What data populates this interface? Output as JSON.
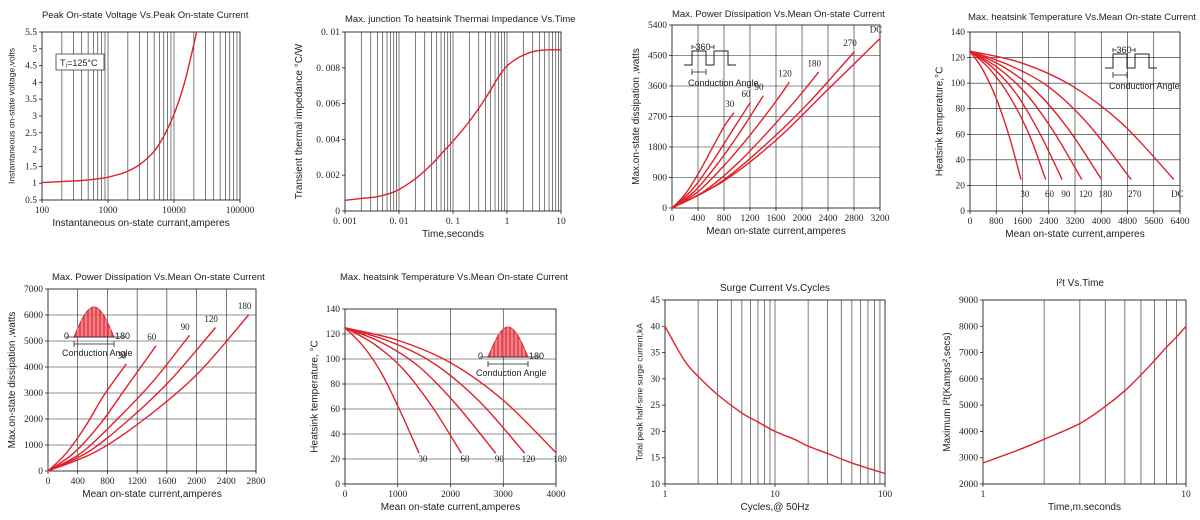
{
  "chart_data": [
    {
      "type": "line",
      "title": "Peak On-state Voltage Vs.Peak On-state Current",
      "xlabel": "Instantaneous on-state currant,amperes",
      "ylabel": "Instantaneous on-state voltage,volts",
      "xscale": "log",
      "xlim": [
        100,
        100000
      ],
      "ylim": [
        0.5,
        5.5
      ],
      "xticks": [
        "100",
        "1000",
        "10000",
        "100000"
      ],
      "yticks": [
        "0.5",
        "1",
        "1.5",
        "2",
        "2.5",
        "3",
        "3.5",
        "4",
        "4.5",
        "5",
        "5.5"
      ],
      "grid": "vertical-log",
      "annotation": "Tⱼ=125°C",
      "series": [
        {
          "x": [
            100,
            200,
            400,
            700,
            1000,
            1500,
            2000,
            3000,
            5000,
            7000,
            10000,
            14000,
            18000,
            22000
          ],
          "y": [
            1.02,
            1.05,
            1.08,
            1.13,
            1.18,
            1.27,
            1.36,
            1.55,
            1.95,
            2.4,
            3.05,
            3.9,
            4.75,
            5.5
          ]
        }
      ]
    },
    {
      "type": "line",
      "title": "Max. junction To heatsink Thermai Impedance Vs.Time",
      "xlabel": "Time,seconds",
      "ylabel": "Transient thermal impedance °C/W",
      "xscale": "log",
      "xlim": [
        0.001,
        10
      ],
      "ylim": [
        0,
        0.01
      ],
      "xticks": [
        "0. 001",
        "0. 01",
        "0. 1",
        "1",
        "10"
      ],
      "yticks": [
        "0",
        "0. 002",
        "0. 004",
        "0. 006",
        "0. 008",
        "0. 01"
      ],
      "grid": "vertical-log",
      "series": [
        {
          "x": [
            0.001,
            0.002,
            0.004,
            0.007,
            0.01,
            0.02,
            0.04,
            0.07,
            0.1,
            0.2,
            0.4,
            0.7,
            1,
            1.5,
            2,
            3,
            5,
            10
          ],
          "y": [
            0.0006,
            0.0007,
            0.0008,
            0.001,
            0.0012,
            0.0018,
            0.0026,
            0.0034,
            0.0039,
            0.005,
            0.0063,
            0.0075,
            0.0081,
            0.0085,
            0.0087,
            0.0089,
            0.009,
            0.009
          ]
        }
      ]
    },
    {
      "type": "line",
      "title": "Max. Power Dissipation Vs.Mean On-state Current",
      "xlabel": "Mean on-state current,amperes",
      "ylabel": "Max.on-state dissipation ,watts",
      "xlim": [
        0,
        3200
      ],
      "ylim": [
        0,
        5400
      ],
      "xticks": [
        "0",
        "400",
        "800",
        "1200",
        "1600",
        "2000",
        "2400",
        "2800",
        "3200"
      ],
      "yticks": [
        "0",
        "900",
        "1800",
        "2700",
        "3600",
        "4500",
        "5400"
      ],
      "grid": "linear",
      "inset_labels": [
        "360",
        "Conduction Angle"
      ],
      "series": [
        {
          "name": "30",
          "x": [
            0,
            200,
            400,
            600,
            800,
            950
          ],
          "y": [
            0,
            400,
            1000,
            1700,
            2400,
            2800
          ]
        },
        {
          "name": "60",
          "x": [
            0,
            300,
            600,
            900,
            1200
          ],
          "y": [
            0,
            520,
            1300,
            2200,
            3100
          ]
        },
        {
          "name": "90",
          "x": [
            0,
            350,
            700,
            1050,
            1400
          ],
          "y": [
            0,
            500,
            1300,
            2250,
            3300
          ]
        },
        {
          "name": "120",
          "x": [
            0,
            400,
            800,
            1200,
            1600,
            1800
          ],
          "y": [
            0,
            480,
            1250,
            2150,
            3150,
            3700
          ]
        },
        {
          "name": "180",
          "x": [
            0,
            500,
            1000,
            1500,
            2000,
            2250
          ],
          "y": [
            0,
            500,
            1300,
            2300,
            3400,
            4000
          ]
        },
        {
          "name": "270",
          "x": [
            0,
            700,
            1400,
            2100,
            2800
          ],
          "y": [
            0,
            700,
            1800,
            3100,
            4600
          ]
        },
        {
          "name": "DC",
          "x": [
            0,
            800,
            1600,
            2400,
            3200
          ],
          "y": [
            0,
            800,
            2000,
            3500,
            5000
          ]
        }
      ]
    },
    {
      "type": "line",
      "title": "Max. heatsink Temperature Vs.Mean On-state Current",
      "xlabel": "Mean on-state current,amperes",
      "ylabel": "Heatsink temperature,°C",
      "xlim": [
        0,
        6400
      ],
      "ylim": [
        0,
        140
      ],
      "xticks": [
        "0",
        "800",
        "1600",
        "2400",
        "3200",
        "4000",
        "4800",
        "5600",
        "6400"
      ],
      "yticks": [
        "0",
        "20",
        "40",
        "60",
        "80",
        "100",
        "120",
        "140"
      ],
      "grid": "linear",
      "inset_labels": [
        "360",
        "Conduction Angle"
      ],
      "series": [
        {
          "name": "30",
          "x": [
            0,
            400,
            800,
            1200,
            1550
          ],
          "y": [
            125,
            110,
            88,
            58,
            25
          ]
        },
        {
          "name": "60",
          "x": [
            0,
            600,
            1200,
            1800,
            2300
          ],
          "y": [
            125,
            111,
            90,
            60,
            25
          ]
        },
        {
          "name": "90",
          "x": [
            0,
            700,
            1400,
            2100,
            2800
          ],
          "y": [
            125,
            112,
            92,
            62,
            25
          ]
        },
        {
          "name": "120",
          "x": [
            0,
            850,
            1700,
            2550,
            3400
          ],
          "y": [
            125,
            112,
            92,
            62,
            25
          ]
        },
        {
          "name": "180",
          "x": [
            0,
            1000,
            2000,
            3000,
            4000
          ],
          "y": [
            125,
            113,
            94,
            64,
            25
          ]
        },
        {
          "name": "270",
          "x": [
            0,
            1200,
            2400,
            3600,
            4900
          ],
          "y": [
            125,
            114,
            97,
            68,
            25
          ]
        },
        {
          "name": "DC",
          "x": [
            0,
            1550,
            3100,
            4650,
            6200
          ],
          "y": [
            125,
            116,
            98,
            68,
            25
          ]
        }
      ]
    },
    {
      "type": "line",
      "title": "Max. Power Dissipation Vs.Mean On-state Current",
      "xlabel": "Mean on-state current,amperes",
      "ylabel": "Max.on-state dissipation ,watts",
      "xlim": [
        0,
        2800
      ],
      "ylim": [
        0,
        7000
      ],
      "xticks": [
        "0",
        "400",
        "800",
        "1200",
        "1600",
        "2000",
        "2400",
        "2800"
      ],
      "yticks": [
        "0",
        "1000",
        "2000",
        "3000",
        "4000",
        "5000",
        "6000",
        "7000"
      ],
      "grid": "linear",
      "inset_labels": [
        "0",
        "180",
        "Conduction Angle"
      ],
      "series": [
        {
          "name": "30",
          "x": [
            0,
            250,
            500,
            750,
            1050
          ],
          "y": [
            0,
            700,
            1700,
            2900,
            4100
          ]
        },
        {
          "name": "60",
          "x": [
            0,
            350,
            700,
            1050,
            1450
          ],
          "y": [
            0,
            700,
            1800,
            3200,
            4800
          ]
        },
        {
          "name": "90",
          "x": [
            0,
            450,
            900,
            1400,
            1900
          ],
          "y": [
            0,
            700,
            1900,
            3400,
            5200
          ]
        },
        {
          "name": "120",
          "x": [
            0,
            550,
            1100,
            1650,
            2250
          ],
          "y": [
            0,
            750,
            2000,
            3500,
            5500
          ]
        },
        {
          "name": "180",
          "x": [
            0,
            650,
            1300,
            2000,
            2700
          ],
          "y": [
            0,
            750,
            2000,
            3700,
            6000
          ]
        }
      ]
    },
    {
      "type": "line",
      "title": "Max. heatsink Temperature Vs.Mean On-state Current",
      "xlabel": "Mean on-state current,amperes",
      "ylabel": "Heatsink temperature, °C",
      "xlim": [
        0,
        4000
      ],
      "ylim": [
        0,
        140
      ],
      "xticks": [
        "0",
        "1000",
        "2000",
        "3000",
        "4000"
      ],
      "yticks": [
        "0",
        "20",
        "40",
        "60",
        "80",
        "100",
        "120",
        "140"
      ],
      "grid": "linear",
      "inset_labels": [
        "0",
        "180",
        "Conduction Angle"
      ],
      "series": [
        {
          "name": "30",
          "x": [
            0,
            350,
            700,
            1050,
            1400
          ],
          "y": [
            125,
            110,
            88,
            58,
            25
          ]
        },
        {
          "name": "60",
          "x": [
            0,
            550,
            1100,
            1650,
            2200
          ],
          "y": [
            125,
            112,
            92,
            62,
            25
          ]
        },
        {
          "name": "90",
          "x": [
            0,
            700,
            1400,
            2100,
            2850
          ],
          "y": [
            125,
            113,
            94,
            64,
            25
          ]
        },
        {
          "name": "120",
          "x": [
            0,
            850,
            1700,
            2550,
            3400
          ],
          "y": [
            125,
            114,
            96,
            66,
            25
          ]
        },
        {
          "name": "180",
          "x": [
            0,
            1000,
            2000,
            3000,
            4000
          ],
          "y": [
            125,
            115,
            97,
            67,
            25
          ]
        }
      ]
    },
    {
      "type": "line",
      "title": "Surge Current Vs.Cycles",
      "xlabel": "Cycles,@ 50Hz",
      "ylabel": "Total peak half-sine surge current,kA",
      "xscale": "log",
      "xlim": [
        1,
        100
      ],
      "ylim": [
        10,
        45
      ],
      "xticks": [
        "1",
        "10",
        "100"
      ],
      "yticks": [
        "10",
        "15",
        "20",
        "25",
        "30",
        "35",
        "40",
        "45"
      ],
      "grid": "vertical-log",
      "series": [
        {
          "x": [
            1,
            1.5,
            2,
            3,
            5,
            7,
            10,
            15,
            20,
            30,
            50,
            70,
            100
          ],
          "y": [
            40,
            33.5,
            30.5,
            27,
            23.5,
            21.8,
            20,
            18.5,
            17.2,
            15.8,
            14,
            13,
            12
          ]
        }
      ]
    },
    {
      "type": "line",
      "title": "I²t  Vs.Time",
      "xlabel": "Time,m.seconds",
      "ylabel": "Maximum I²t(Kamps²,secs)",
      "xscale": "log",
      "xlim": [
        1,
        10
      ],
      "ylim": [
        2000,
        9000
      ],
      "xticks": [
        "1",
        "10"
      ],
      "yticks": [
        "2000",
        "3000",
        "4000",
        "5000",
        "6000",
        "7000",
        "8000",
        "9000"
      ],
      "grid": "vertical-log",
      "series": [
        {
          "x": [
            1,
            1.5,
            2,
            3,
            4,
            5,
            6,
            7,
            8,
            9,
            10
          ],
          "y": [
            2800,
            3300,
            3700,
            4300,
            4950,
            5550,
            6150,
            6700,
            7200,
            7600,
            8000
          ]
        }
      ]
    }
  ]
}
